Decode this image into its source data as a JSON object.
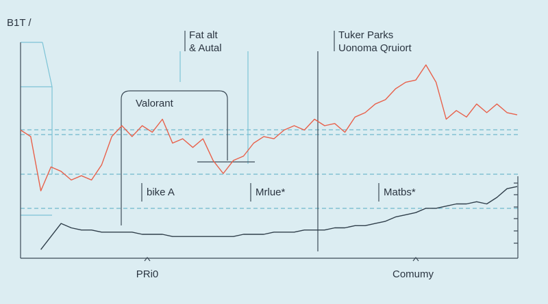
{
  "chart_data": {
    "type": "line",
    "title": "B1T /",
    "annotations": [
      "Fat alt",
      "& Autal",
      "Tuker Parks",
      "Uonoma Qruiort",
      "Valorant",
      "bike A",
      "Mrlue*",
      "Matbs*",
      "PRi0",
      "Comumy"
    ],
    "ylim": [
      0,
      100
    ],
    "series": [
      {
        "color": "#e8604a",
        "values": [
          59,
          56,
          31,
          42,
          40,
          36,
          38,
          36,
          43,
          56,
          61,
          56,
          61,
          58,
          64,
          53,
          55,
          51,
          55,
          45,
          39,
          45,
          47,
          53,
          56,
          55,
          59,
          61,
          59,
          64,
          61,
          62,
          58,
          65,
          67,
          71,
          73,
          78,
          81,
          82,
          89,
          81,
          64,
          68,
          65,
          71,
          67,
          71,
          67,
          66
        ]
      },
      {
        "color": "#2f3e4a",
        "values": [
          null,
          null,
          4,
          10,
          16,
          14,
          13,
          13,
          12,
          12,
          12,
          12,
          11,
          11,
          11,
          10,
          10,
          10,
          10,
          10,
          10,
          10,
          11,
          11,
          11,
          12,
          12,
          12,
          13,
          13,
          13,
          14,
          14,
          15,
          15,
          16,
          17,
          19,
          20,
          21,
          23,
          23,
          24,
          25,
          25,
          26,
          25,
          28,
          32,
          33
        ]
      }
    ]
  }
}
